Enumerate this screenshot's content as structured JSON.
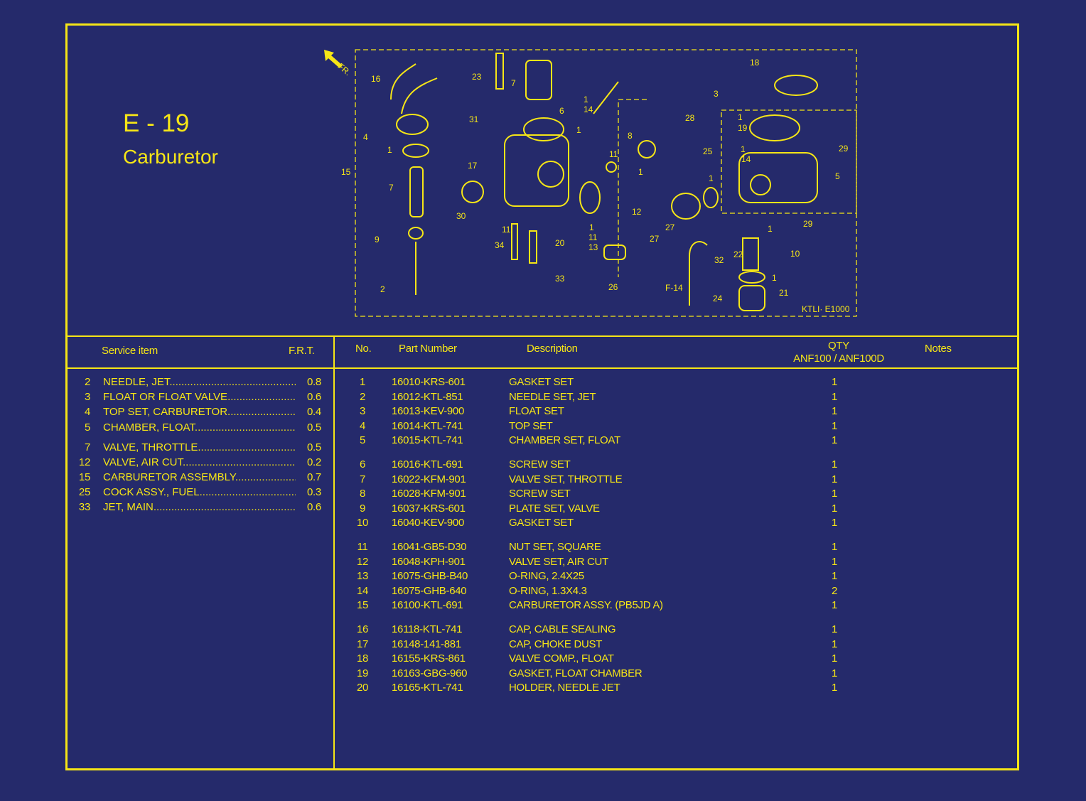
{
  "page": {
    "code": "E - 19",
    "title": "Carburetor"
  },
  "colors": {
    "background": "#252a6b",
    "accent": "#f6e616"
  },
  "diagram": {
    "direction_label": "FR.",
    "reference_code": "KTLI· E1000",
    "callouts": [
      "16",
      "23",
      "7",
      "6",
      "1",
      "14",
      "18",
      "3",
      "31",
      "1",
      "8",
      "28",
      "1",
      "19",
      "29",
      "4",
      "1",
      "11",
      "25",
      "1",
      "14",
      "5",
      "15",
      "17",
      "1",
      "1",
      "7",
      "12",
      "27",
      "29",
      "1",
      "30",
      "11",
      "1",
      "11",
      "13",
      "27",
      "10",
      "9",
      "34",
      "20",
      "32",
      "22",
      "1",
      "33",
      "26",
      "F-14",
      "21",
      "2",
      "24"
    ]
  },
  "service_table": {
    "headers": {
      "item": "Service item",
      "frt": "F.R.T."
    },
    "rows": [
      {
        "no": "2",
        "item": "NEEDLE, JET",
        "frt": "0.8"
      },
      {
        "no": "3",
        "item": "FLOAT OR FLOAT VALVE",
        "frt": "0.6"
      },
      {
        "no": "4",
        "item": "TOP SET, CARBURETOR",
        "frt": "0.4"
      },
      {
        "no": "5",
        "item": "CHAMBER, FLOAT",
        "frt": "0.5"
      },
      {
        "no": "7",
        "item": "VALVE, THROTTLE",
        "frt": "0.5"
      },
      {
        "no": "12",
        "item": "VALVE, AIR CUT",
        "frt": "0.2"
      },
      {
        "no": "15",
        "item": "CARBURETOR ASSEMBLY",
        "frt": "0.7"
      },
      {
        "no": "25",
        "item": "COCK ASSY., FUEL",
        "frt": "0.3"
      },
      {
        "no": "33",
        "item": "JET, MAIN",
        "frt": "0.6"
      }
    ]
  },
  "parts_table": {
    "headers": {
      "no": "No.",
      "part_number": "Part Number",
      "description": "Description",
      "qty": "QTY",
      "qty_models": "ANF100 / ANF100D",
      "notes": "Notes"
    },
    "rows": [
      {
        "no": "1",
        "part": "16010-KRS-601",
        "desc": "GASKET SET",
        "qty": "1"
      },
      {
        "no": "2",
        "part": "16012-KTL-851",
        "desc": "NEEDLE SET, JET",
        "qty": "1"
      },
      {
        "no": "3",
        "part": "16013-KEV-900",
        "desc": "FLOAT SET",
        "qty": "1"
      },
      {
        "no": "4",
        "part": "16014-KTL-741",
        "desc": "TOP SET",
        "qty": "1"
      },
      {
        "no": "5",
        "part": "16015-KTL-741",
        "desc": "CHAMBER SET, FLOAT",
        "qty": "1"
      },
      {
        "no": "6",
        "part": "16016-KTL-691",
        "desc": "SCREW SET",
        "qty": "1"
      },
      {
        "no": "7",
        "part": "16022-KFM-901",
        "desc": "VALVE SET, THROTTLE",
        "qty": "1"
      },
      {
        "no": "8",
        "part": "16028-KFM-901",
        "desc": "SCREW SET",
        "qty": "1"
      },
      {
        "no": "9",
        "part": "16037-KRS-601",
        "desc": "PLATE SET, VALVE",
        "qty": "1"
      },
      {
        "no": "10",
        "part": "16040-KEV-900",
        "desc": "GASKET SET",
        "qty": "1"
      },
      {
        "no": "11",
        "part": "16041-GB5-D30",
        "desc": "NUT SET, SQUARE",
        "qty": "1"
      },
      {
        "no": "12",
        "part": "16048-KPH-901",
        "desc": "VALVE SET, AIR CUT",
        "qty": "1"
      },
      {
        "no": "13",
        "part": "16075-GHB-B40",
        "desc": "O-RING, 2.4X25",
        "qty": "1"
      },
      {
        "no": "14",
        "part": "16075-GHB-640",
        "desc": "O-RING, 1.3X4.3",
        "qty": "2"
      },
      {
        "no": "15",
        "part": "16100-KTL-691",
        "desc": "CARBURETOR ASSY. (PB5JD A)",
        "qty": "1"
      },
      {
        "no": "16",
        "part": "16118-KTL-741",
        "desc": "CAP, CABLE SEALING",
        "qty": "1"
      },
      {
        "no": "17",
        "part": "16148-141-881",
        "desc": "CAP, CHOKE DUST",
        "qty": "1"
      },
      {
        "no": "18",
        "part": "16155-KRS-861",
        "desc": "VALVE COMP., FLOAT",
        "qty": "1"
      },
      {
        "no": "19",
        "part": "16163-GBG-960",
        "desc": "GASKET, FLOAT CHAMBER",
        "qty": "1"
      },
      {
        "no": "20",
        "part": "16165-KTL-741",
        "desc": "HOLDER, NEEDLE JET",
        "qty": "1"
      }
    ]
  }
}
